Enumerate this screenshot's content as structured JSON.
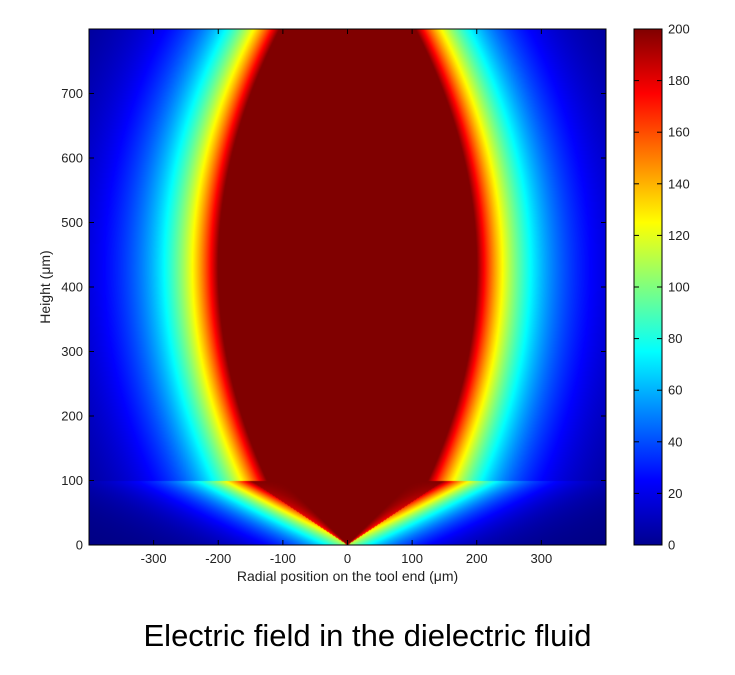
{
  "caption": "Electric field in the dielectric fluid",
  "chart_data": {
    "type": "heatmap",
    "colormap": "jet",
    "xlabel": "Radial position on the tool end (μm)",
    "ylabel": "Height (μm)",
    "xlim": [
      -400,
      400
    ],
    "ylim": [
      0,
      800
    ],
    "xticks": [
      -300,
      -200,
      -100,
      0,
      100,
      200,
      300
    ],
    "yticks": [
      0,
      100,
      200,
      300,
      400,
      500,
      600,
      700
    ],
    "colorbar": {
      "range": [
        0,
        200
      ],
      "ticks": [
        0,
        20,
        40,
        60,
        80,
        100,
        120,
        140,
        160,
        180,
        200
      ]
    },
    "features": {
      "saturated_region": "tool region at 200 from x = -100 to 100, y = 0 to 800, tapering to a point at (0, 0)",
      "peak_field_band_x": [
        -200,
        200
      ],
      "background_value": 0
    }
  }
}
